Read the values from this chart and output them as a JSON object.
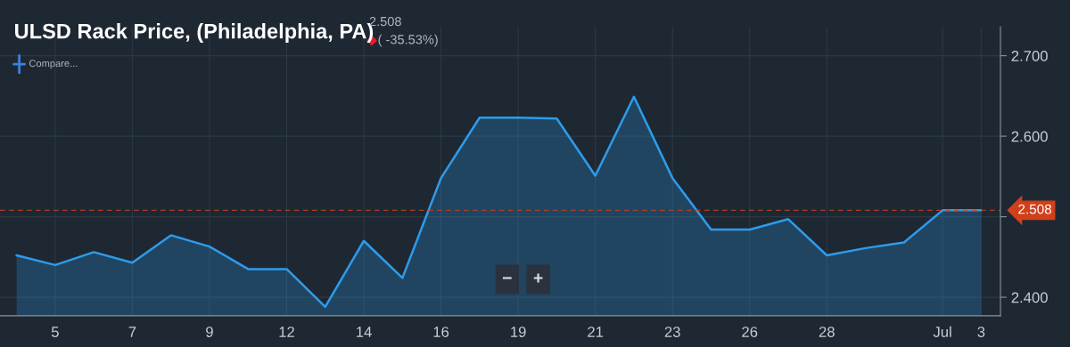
{
  "chart_data": {
    "type": "area",
    "title": "ULSD Rack Price, (Philadelphia, PA)",
    "annotations": [
      "2.508",
      "( -35.53%)",
      "Compare...",
      "−",
      "+"
    ],
    "categories": [
      null,
      "5",
      null,
      "7",
      null,
      "9",
      null,
      "12",
      null,
      "14",
      null,
      "16",
      null,
      "19",
      null,
      "21",
      null,
      "23",
      null,
      "26",
      null,
      "28",
      null,
      null,
      "Jul",
      "3"
    ],
    "series": [
      {
        "color": "#2d9cec",
        "values": [
          2.452,
          2.44,
          2.456,
          2.443,
          2.477,
          2.463,
          2.435,
          2.435,
          2.388,
          2.47,
          2.424,
          2.548,
          2.623,
          2.623,
          2.622,
          2.551,
          2.649,
          2.548,
          2.484,
          2.484,
          2.497,
          2.452,
          2.461,
          2.468,
          2.508,
          2.508
        ]
      }
    ],
    "ylim": [
      2.377,
      2.736
    ],
    "yticks": [
      {
        "value": 2.4,
        "label": "2.400"
      },
      {
        "value": 2.5,
        "label": null
      },
      {
        "value": 2.6,
        "label": "2.600"
      },
      {
        "value": 2.7,
        "label": "2.700"
      }
    ],
    "ref_lines": [
      {
        "axis": "y",
        "value": 2.508,
        "label": "2.508",
        "color": "#d0401b",
        "line_style": "dashed"
      }
    ],
    "grid": true
  }
}
